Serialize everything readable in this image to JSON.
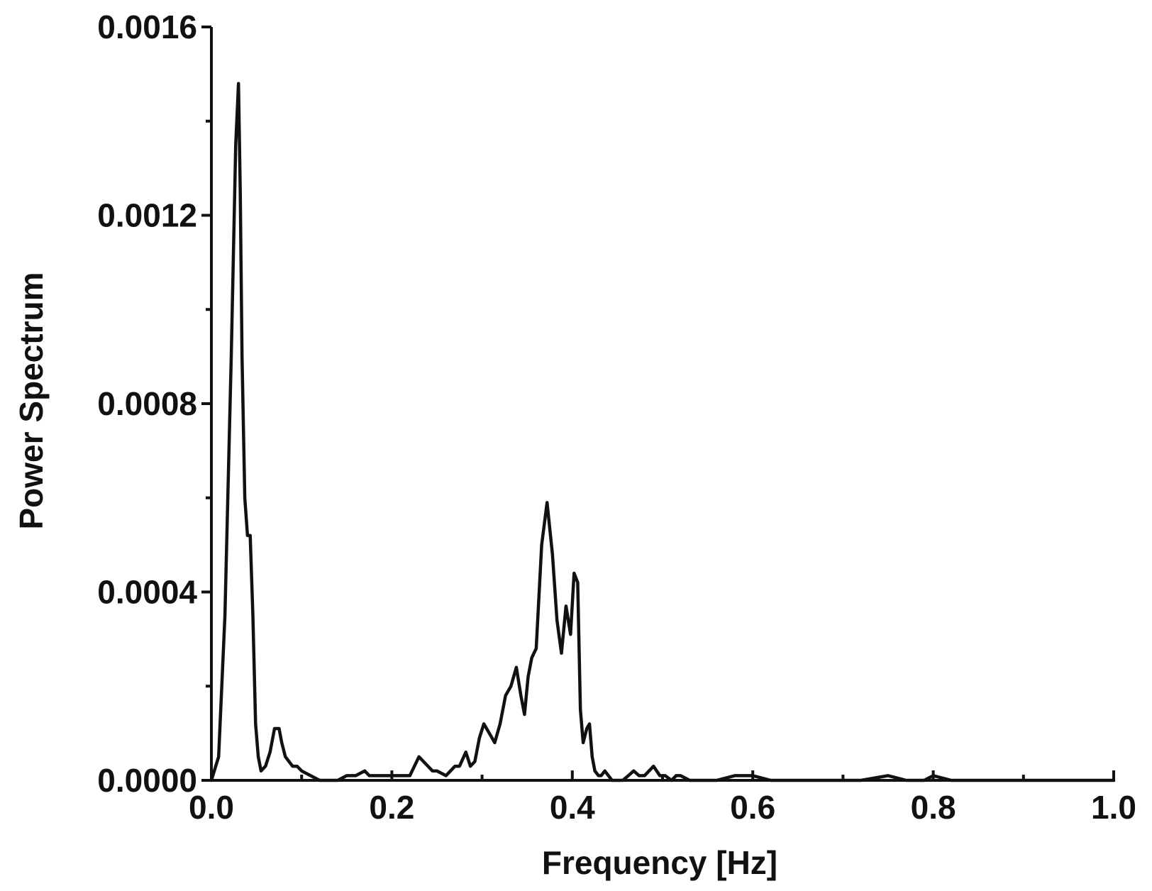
{
  "chart_data": {
    "type": "line",
    "title": "",
    "xlabel": "Frequency [Hz]",
    "ylabel": "Power Spectrum",
    "xlim": [
      0.0,
      1.0
    ],
    "ylim": [
      0.0,
      0.0016
    ],
    "grid": false,
    "x_tick_labels": [
      "0.0",
      "0.2",
      "0.4",
      "0.6",
      "0.8",
      "1.0"
    ],
    "x_tick_values": [
      0.0,
      0.2,
      0.4,
      0.6,
      0.8,
      1.0
    ],
    "x_minor_tick_values": [
      0.1,
      0.3,
      0.5,
      0.7,
      0.9
    ],
    "y_tick_labels": [
      "0.0000",
      "0.0004",
      "0.0008",
      "0.0012",
      "0.0016"
    ],
    "y_tick_values": [
      0.0,
      0.0004,
      0.0008,
      0.0012,
      0.0016
    ],
    "y_minor_tick_values": [
      0.0002,
      0.0006,
      0.001,
      0.0014
    ],
    "series": [
      {
        "x": [
          0.0,
          0.008,
          0.015,
          0.022,
          0.027,
          0.03,
          0.032,
          0.034,
          0.037,
          0.04,
          0.043,
          0.046,
          0.049,
          0.052,
          0.055,
          0.06,
          0.065,
          0.07,
          0.075,
          0.078,
          0.082,
          0.086,
          0.09,
          0.095,
          0.1,
          0.11,
          0.12,
          0.13,
          0.14,
          0.15,
          0.16,
          0.17,
          0.175,
          0.18,
          0.19,
          0.2,
          0.21,
          0.22,
          0.23,
          0.24,
          0.245,
          0.25,
          0.26,
          0.265,
          0.27,
          0.275,
          0.282,
          0.287,
          0.292,
          0.297,
          0.302,
          0.308,
          0.314,
          0.32,
          0.326,
          0.332,
          0.338,
          0.343,
          0.347,
          0.351,
          0.355,
          0.36,
          0.366,
          0.372,
          0.378,
          0.383,
          0.388,
          0.393,
          0.398,
          0.402,
          0.406,
          0.409,
          0.412,
          0.416,
          0.419,
          0.422,
          0.425,
          0.429,
          0.432,
          0.436,
          0.44,
          0.444,
          0.45,
          0.456,
          0.462,
          0.468,
          0.474,
          0.48,
          0.49,
          0.497,
          0.503,
          0.51,
          0.515,
          0.52,
          0.53,
          0.54,
          0.55,
          0.56,
          0.58,
          0.6,
          0.62,
          0.65,
          0.7,
          0.72,
          0.75,
          0.77,
          0.79,
          0.8,
          0.82,
          0.85,
          0.9,
          0.95,
          1.0
        ],
        "y": [
          0.0,
          5e-05,
          0.00035,
          0.0009,
          0.00135,
          0.00148,
          0.00125,
          0.0009,
          0.0006,
          0.00052,
          0.00052,
          0.00035,
          0.00012,
          5e-05,
          2e-05,
          3e-05,
          6e-05,
          0.00011,
          0.00011,
          8e-05,
          5e-05,
          4e-05,
          3e-05,
          3e-05,
          2e-05,
          1e-05,
          0.0,
          0.0,
          0.0,
          1e-05,
          1e-05,
          2e-05,
          1e-05,
          1e-05,
          1e-05,
          1e-05,
          1e-05,
          1e-05,
          5e-05,
          3e-05,
          2e-05,
          2e-05,
          1e-05,
          2e-05,
          3e-05,
          3e-05,
          6e-05,
          3e-05,
          4e-05,
          9e-05,
          0.00012,
          0.0001,
          8e-05,
          0.00012,
          0.00018,
          0.0002,
          0.00024,
          0.00018,
          0.00014,
          0.00022,
          0.00026,
          0.00028,
          0.0005,
          0.00059,
          0.00048,
          0.00034,
          0.00027,
          0.00037,
          0.00031,
          0.00044,
          0.00042,
          0.00015,
          8e-05,
          0.00011,
          0.00012,
          5e-05,
          2e-05,
          1e-05,
          1e-05,
          2e-05,
          1e-05,
          0.0,
          0.0,
          0.0,
          1e-05,
          2e-05,
          1e-05,
          1e-05,
          3e-05,
          1e-05,
          1e-05,
          0.0,
          1e-05,
          1e-05,
          0.0,
          0.0,
          0.0,
          0.0,
          1e-05,
          1e-05,
          0.0,
          0.0,
          0.0,
          0.0,
          1e-05,
          0.0,
          0.0,
          1e-05,
          0.0,
          0.0,
          0.0,
          0.0,
          0.0
        ]
      }
    ]
  }
}
